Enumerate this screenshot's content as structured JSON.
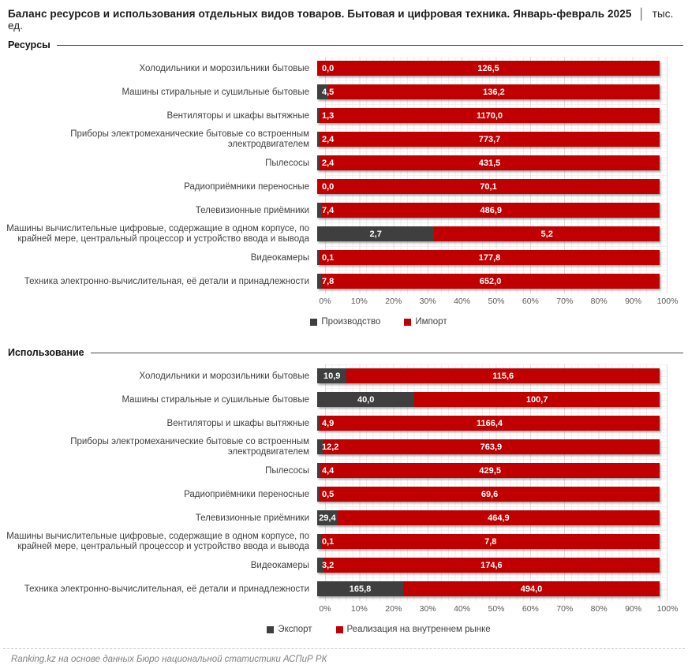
{
  "title": {
    "main": "Баланс ресурсов и использования отдельных видов товаров. Бытовая и цифровая техника. Январь-февраль 2025",
    "separator": "│",
    "unit": "тыс. ед."
  },
  "colors": {
    "series_dark": "#3f3f3f",
    "series_red": "#c00000"
  },
  "axis": {
    "ticks": [
      "0%",
      "10%",
      "20%",
      "30%",
      "40%",
      "50%",
      "60%",
      "70%",
      "80%",
      "90%",
      "100%"
    ]
  },
  "categories": [
    "Холодильники и морозильники бытовые",
    "Машины стиральные и сушильные бытовые",
    "Вентиляторы и шкафы вытяжные",
    "Приборы электромеханические бытовые со встроенным электродвигателем",
    "Пылесосы",
    "Радиоприёмники переносные",
    "Телевизионные приёмники",
    "Машины вычислительные цифровые, содержащие в одном корпусе, по крайней мере, центральный процессор и устройство ввода и вывода",
    "Видеокамеры",
    "Техника электронно-вычислительная, её детали и принадлежности"
  ],
  "chart_data": [
    {
      "type": "bar",
      "variant": "stacked-100-horizontal",
      "section": "Ресурсы",
      "legend_position": "bottom",
      "xlim": [
        0,
        100
      ],
      "categories": [
        "Холодильники и морозильники бытовые",
        "Машины стиральные и сушильные бытовые",
        "Вентиляторы и шкафы вытяжные",
        "Приборы электромеханические бытовые со встроенным электродвигателем",
        "Пылесосы",
        "Радиоприёмники переносные",
        "Телевизионные приёмники",
        "Машины вычислительные цифровые, содержащие в одном корпусе, по крайней мере, центральный процессор и устройство ввода и вывода",
        "Видеокамеры",
        "Техника электронно-вычислительная, её детали и принадлежности"
      ],
      "series": [
        {
          "name": "Производство",
          "color": "#3f3f3f",
          "values": [
            0.0,
            4.5,
            1.3,
            2.4,
            2.4,
            0.0,
            7.4,
            2.7,
            0.1,
            7.8
          ]
        },
        {
          "name": "Импорт",
          "color": "#c00000",
          "values": [
            126.5,
            136.2,
            1170.0,
            773.7,
            431.5,
            70.1,
            486.9,
            5.2,
            177.8,
            652.0
          ]
        }
      ]
    },
    {
      "type": "bar",
      "variant": "stacked-100-horizontal",
      "section": "Использование",
      "legend_position": "bottom",
      "xlim": [
        0,
        100
      ],
      "categories": [
        "Холодильники и морозильники бытовые",
        "Машины стиральные и сушильные бытовые",
        "Вентиляторы и шкафы вытяжные",
        "Приборы электромеханические бытовые со встроенным электродвигателем",
        "Пылесосы",
        "Радиоприёмники переносные",
        "Телевизионные приёмники",
        "Машины вычислительные цифровые, содержащие в одном корпусе, по крайней мере, центральный процессор и устройство ввода и вывода",
        "Видеокамеры",
        "Техника электронно-вычислительная, её детали и принадлежности"
      ],
      "series": [
        {
          "name": "Экспорт",
          "color": "#3f3f3f",
          "values": [
            10.9,
            40.0,
            4.9,
            12.2,
            4.4,
            0.5,
            29.4,
            0.1,
            3.2,
            165.8
          ]
        },
        {
          "name": "Реализация на внутреннем рынке",
          "color": "#c00000",
          "values": [
            115.6,
            100.7,
            1166.4,
            763.9,
            429.5,
            69.6,
            464.9,
            7.8,
            174.6,
            494.0
          ]
        }
      ]
    }
  ],
  "footer": {
    "source": "Ranking.kz на основе данных Бюро национальной статистики АСПиР РК"
  }
}
